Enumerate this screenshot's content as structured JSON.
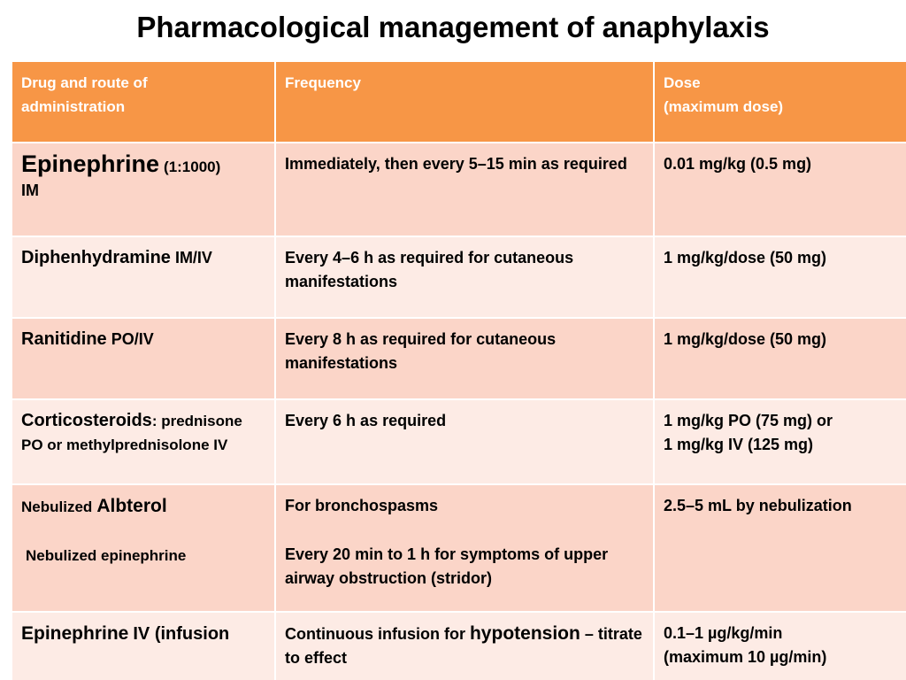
{
  "title": "Pharmacological management of anaphylaxis",
  "headers": {
    "drug_line1": "Drug and route of",
    "drug_line2": "administration",
    "frequency": "Frequency",
    "dose_line1": "Dose",
    "dose_line2": "(maximum dose)"
  },
  "rows": [
    {
      "drug_name": "Epinephrine",
      "drug_extra": "(1:1000)",
      "drug_route": "IM",
      "frequency": "Immediately, then every 5–15 min as required",
      "dose": "0.01 mg/kg   (0.5 mg)"
    },
    {
      "drug_name": "Diphenhydramine",
      "drug_route": "IM/IV",
      "frequency": "Every 4–6 h as required for cutaneous manifestations",
      "dose": "1 mg/kg/dose (50 mg)"
    },
    {
      "drug_name": "Ranitidine",
      "drug_route": "PO/IV",
      "frequency": "Every 8 h as required for cutaneous manifestations",
      "dose": "1 mg/kg/dose (50 mg)"
    },
    {
      "drug_name": "Corticosteroids",
      "drug_extra": ": prednisone",
      "drug_route": "PO or methylprednisolone IV",
      "frequency": "Every 6 h as required",
      "dose_line1": "1 mg/kg PO (75 mg) or",
      "dose_line2": "1 mg/kg IV (125 mg)"
    },
    {
      "drug_prefix": "Nebulized",
      "drug_name": "Albterol",
      "drug2": "Nebulized  epinephrine",
      "frequency1": "For bronchospasms",
      "frequency2": "Every 20 min to 1 h for symptoms of upper airway obstruction (stridor)",
      "dose": "2.5–5 mL by nebulization"
    },
    {
      "drug_name": "Epinephrine",
      "drug_route": "IV (infusion",
      "frequency_prefix": "Continuous infusion for",
      "frequency_highlight": "hypotension",
      "frequency_suffix": "– titrate to effect",
      "dose_line1": "0.1–1 µg/kg/min",
      "dose_line2": "(maximum 10 µg/min)"
    }
  ]
}
